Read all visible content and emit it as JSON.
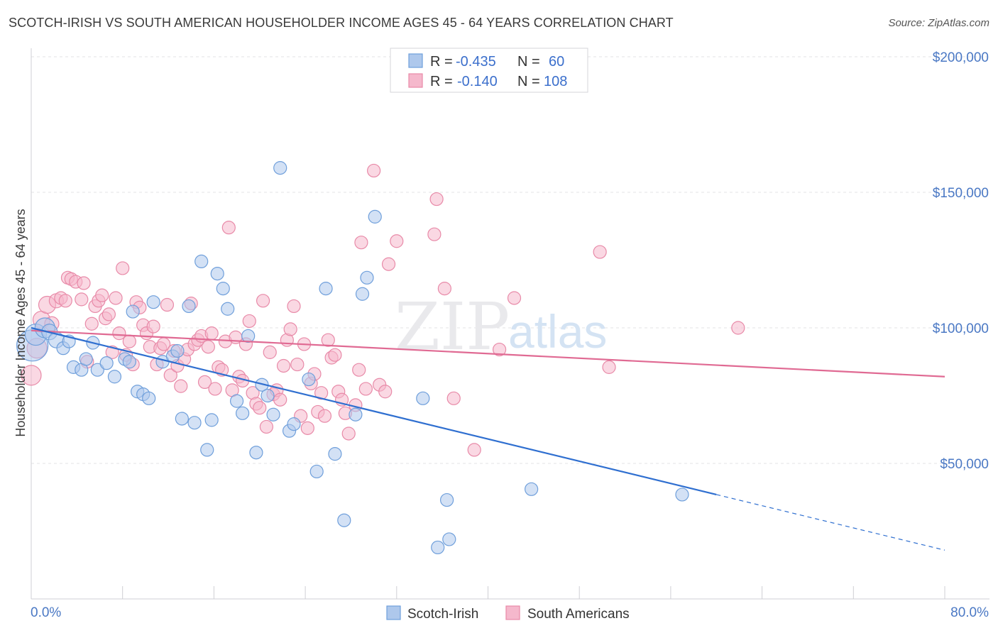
{
  "title": "SCOTCH-IRISH VS SOUTH AMERICAN HOUSEHOLDER INCOME AGES 45 - 64 YEARS CORRELATION CHART",
  "source": "Source: ZipAtlas.com",
  "watermark": {
    "part1": "ZIP",
    "part2": "atlas"
  },
  "colors": {
    "blue_fill": "#aec8ec",
    "blue_stroke": "#6f9fdb",
    "blue_line": "#2f6fd0",
    "pink_fill": "#f5b8cc",
    "pink_stroke": "#e88aa8",
    "pink_line": "#e06a93",
    "grid": "#e3e3e6",
    "axis_text": "#4a78c4"
  },
  "legend": {
    "rows": [
      {
        "r_label": "R = ",
        "r_value": "-0.435",
        "n_label": "N = ",
        "n_value": "60"
      },
      {
        "r_label": "R = ",
        "r_value": "-0.140",
        "n_label": "N = ",
        "n_value": "108"
      }
    ]
  },
  "bottom_legend": {
    "blue": "Scotch-Irish",
    "pink": "South Americans"
  },
  "chart_data": {
    "type": "scatter",
    "title": "SCOTCH-IRISH VS SOUTH AMERICAN HOUSEHOLDER INCOME AGES 45 - 64 YEARS CORRELATION CHART",
    "xlabel": "",
    "ylabel": "Householder Income Ages 45 - 64 years",
    "xlim": [
      0,
      80
    ],
    "ylim": [
      0,
      200000
    ],
    "x_tick_labels": [
      "0.0%",
      "80.0%"
    ],
    "y_ticks": [
      50000,
      100000,
      150000,
      200000
    ],
    "y_tick_labels": [
      "$50,000",
      "$100,000",
      "$150,000",
      "$200,000"
    ],
    "grid": true,
    "legend_position": "top-center",
    "series": [
      {
        "name": "Scotch-Irish",
        "r": -0.435,
        "n": 60,
        "trend": {
          "x0": 0,
          "y0": 100000,
          "x1": 60,
          "y1": 38500,
          "dash_to_x": 80,
          "dash_to_y": 18000
        },
        "points": [
          [
            0.1,
            93500,
            22
          ],
          [
            0.4,
            97500,
            15
          ],
          [
            1.2,
            100000,
            14
          ],
          [
            1.6,
            98500,
            11
          ],
          [
            2.2,
            95500,
            11
          ],
          [
            2.8,
            92500,
            9
          ],
          [
            3.3,
            95000,
            9
          ],
          [
            3.7,
            85500,
            9
          ],
          [
            4.4,
            84500,
            9
          ],
          [
            4.8,
            88500,
            9
          ],
          [
            5.4,
            94500,
            9
          ],
          [
            5.8,
            84500,
            9
          ],
          [
            6.6,
            87000,
            9
          ],
          [
            7.3,
            82000,
            9
          ],
          [
            8.2,
            88500,
            9
          ],
          [
            8.6,
            87500,
            9
          ],
          [
            8.9,
            106000,
            9
          ],
          [
            9.3,
            76500,
            9
          ],
          [
            9.8,
            75500,
            9
          ],
          [
            10.3,
            74000,
            9
          ],
          [
            10.7,
            109500,
            9
          ],
          [
            11.5,
            87500,
            9
          ],
          [
            12.4,
            89500,
            9
          ],
          [
            12.8,
            91500,
            9
          ],
          [
            13.2,
            66500,
            9
          ],
          [
            13.8,
            108000,
            9
          ],
          [
            14.3,
            65000,
            9
          ],
          [
            14.9,
            124500,
            9
          ],
          [
            15.4,
            55000,
            9
          ],
          [
            15.8,
            66000,
            9
          ],
          [
            16.3,
            120000,
            9
          ],
          [
            16.8,
            114500,
            9
          ],
          [
            17.2,
            107000,
            9
          ],
          [
            18.0,
            73000,
            9
          ],
          [
            18.5,
            68500,
            9
          ],
          [
            19.0,
            97000,
            9
          ],
          [
            19.7,
            54000,
            9
          ],
          [
            20.2,
            79000,
            9
          ],
          [
            20.7,
            75000,
            9
          ],
          [
            21.2,
            68000,
            9
          ],
          [
            21.8,
            159000,
            9
          ],
          [
            22.6,
            62000,
            9
          ],
          [
            23.0,
            64500,
            9
          ],
          [
            24.3,
            81000,
            9
          ],
          [
            25.0,
            47000,
            9
          ],
          [
            25.8,
            114500,
            9
          ],
          [
            26.6,
            53500,
            9
          ],
          [
            27.4,
            29000,
            9
          ],
          [
            28.4,
            68000,
            9
          ],
          [
            29.0,
            112500,
            9
          ],
          [
            29.4,
            118500,
            9
          ],
          [
            30.1,
            141000,
            9
          ],
          [
            34.3,
            74000,
            9
          ],
          [
            35.6,
            19000,
            9
          ],
          [
            36.4,
            36500,
            9
          ],
          [
            36.6,
            22000,
            9
          ],
          [
            43.8,
            40500,
            9
          ],
          [
            57.0,
            38500,
            9
          ]
        ]
      },
      {
        "name": "South Americans",
        "r": -0.14,
        "n": 108,
        "trend": {
          "x0": 0,
          "y0": 99000,
          "x1": 80,
          "y1": 82000
        },
        "points": [
          [
            0.0,
            82500,
            14
          ],
          [
            0.5,
            92500,
            14
          ],
          [
            0.9,
            103000,
            12
          ],
          [
            1.4,
            108500,
            12
          ],
          [
            1.8,
            101500,
            10
          ],
          [
            2.2,
            110000,
            10
          ],
          [
            2.6,
            111000,
            9
          ],
          [
            3.0,
            110000,
            9
          ],
          [
            3.2,
            118500,
            9
          ],
          [
            3.5,
            118000,
            9
          ],
          [
            3.9,
            117000,
            9
          ],
          [
            4.4,
            110500,
            9
          ],
          [
            4.6,
            116500,
            9
          ],
          [
            4.9,
            87500,
            9
          ],
          [
            5.3,
            101500,
            9
          ],
          [
            5.6,
            108000,
            9
          ],
          [
            5.9,
            110000,
            9
          ],
          [
            6.2,
            112000,
            9
          ],
          [
            6.5,
            103500,
            9
          ],
          [
            6.8,
            105000,
            9
          ],
          [
            7.1,
            91000,
            9
          ],
          [
            7.4,
            111000,
            9
          ],
          [
            7.7,
            98000,
            9
          ],
          [
            8.0,
            122000,
            9
          ],
          [
            8.3,
            90000,
            9
          ],
          [
            8.6,
            95000,
            9
          ],
          [
            8.9,
            86500,
            9
          ],
          [
            9.2,
            109500,
            9
          ],
          [
            9.5,
            107500,
            9
          ],
          [
            9.8,
            101000,
            9
          ],
          [
            10.1,
            98000,
            9
          ],
          [
            10.4,
            93000,
            9
          ],
          [
            10.7,
            100500,
            9
          ],
          [
            11.0,
            86500,
            9
          ],
          [
            11.3,
            92500,
            9
          ],
          [
            11.6,
            94000,
            9
          ],
          [
            11.9,
            108500,
            9
          ],
          [
            12.2,
            82500,
            9
          ],
          [
            12.5,
            91500,
            9
          ],
          [
            12.8,
            86000,
            9
          ],
          [
            13.1,
            78500,
            9
          ],
          [
            13.4,
            88500,
            9
          ],
          [
            13.7,
            92000,
            9
          ],
          [
            14.0,
            109000,
            9
          ],
          [
            14.3,
            94000,
            9
          ],
          [
            14.6,
            95500,
            9
          ],
          [
            14.9,
            97000,
            9
          ],
          [
            15.2,
            80000,
            9
          ],
          [
            15.5,
            93000,
            9
          ],
          [
            15.8,
            98000,
            9
          ],
          [
            16.1,
            77500,
            9
          ],
          [
            16.4,
            85500,
            9
          ],
          [
            16.7,
            84500,
            9
          ],
          [
            17.0,
            95000,
            9
          ],
          [
            17.3,
            137000,
            9
          ],
          [
            17.6,
            77000,
            9
          ],
          [
            17.9,
            96500,
            9
          ],
          [
            18.2,
            82000,
            9
          ],
          [
            18.5,
            80500,
            9
          ],
          [
            18.8,
            94000,
            9
          ],
          [
            19.1,
            102500,
            9
          ],
          [
            19.4,
            76000,
            9
          ],
          [
            19.7,
            72000,
            9
          ],
          [
            20.0,
            70500,
            9
          ],
          [
            20.3,
            110000,
            9
          ],
          [
            20.6,
            63500,
            9
          ],
          [
            20.9,
            91000,
            9
          ],
          [
            21.2,
            75500,
            9
          ],
          [
            21.5,
            77000,
            9
          ],
          [
            21.8,
            73500,
            9
          ],
          [
            22.1,
            86000,
            9
          ],
          [
            22.4,
            95500,
            9
          ],
          [
            22.7,
            99500,
            9
          ],
          [
            23.0,
            108000,
            9
          ],
          [
            23.3,
            86500,
            9
          ],
          [
            23.6,
            67500,
            9
          ],
          [
            23.9,
            94000,
            9
          ],
          [
            24.2,
            63000,
            9
          ],
          [
            24.5,
            79500,
            9
          ],
          [
            24.8,
            83000,
            9
          ],
          [
            25.1,
            69000,
            9
          ],
          [
            25.4,
            76000,
            9
          ],
          [
            25.7,
            67500,
            9
          ],
          [
            26.0,
            95500,
            9
          ],
          [
            26.3,
            89000,
            9
          ],
          [
            26.6,
            90000,
            9
          ],
          [
            26.9,
            76500,
            9
          ],
          [
            27.2,
            73500,
            9
          ],
          [
            27.5,
            68500,
            9
          ],
          [
            27.8,
            61000,
            9
          ],
          [
            28.4,
            71500,
            9
          ],
          [
            28.7,
            84500,
            9
          ],
          [
            28.9,
            131500,
            9
          ],
          [
            29.3,
            77500,
            9
          ],
          [
            30.0,
            158000,
            9
          ],
          [
            30.5,
            79000,
            9
          ],
          [
            31.0,
            76500,
            9
          ],
          [
            31.3,
            123500,
            9
          ],
          [
            32.0,
            132000,
            9
          ],
          [
            35.3,
            134500,
            9
          ],
          [
            35.5,
            147500,
            9
          ],
          [
            36.2,
            114500,
            9
          ],
          [
            37.0,
            74000,
            9
          ],
          [
            38.8,
            55000,
            9
          ],
          [
            41.0,
            92000,
            9
          ],
          [
            42.3,
            111000,
            9
          ],
          [
            49.8,
            128000,
            9
          ],
          [
            50.6,
            85500,
            9
          ],
          [
            61.9,
            100000,
            9
          ]
        ]
      }
    ]
  }
}
